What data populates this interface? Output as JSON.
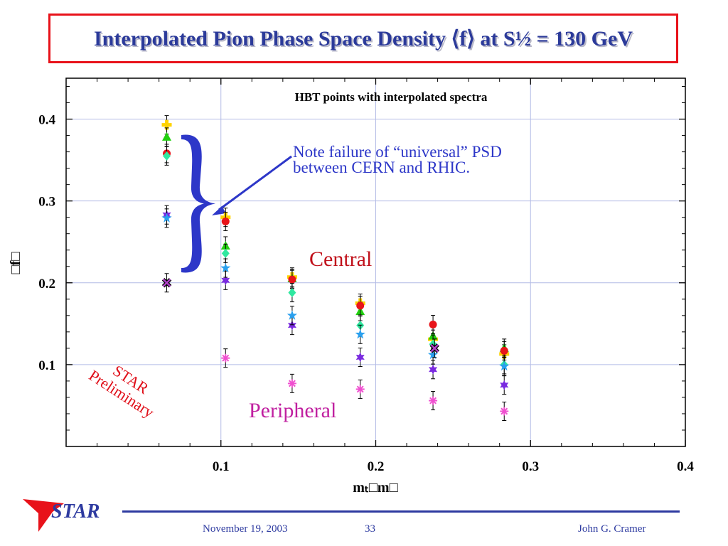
{
  "title": "Interpolated Pion Phase Space Density ⟨f⟩ at S½ = 130 GeV",
  "footer": {
    "logo": "STAR",
    "date": "November 19, 2003",
    "page": "33",
    "author": "John G. Cramer"
  },
  "colors": {
    "frame": "#e8121a",
    "title": "#2b3a9a",
    "brace": "#2d37c8",
    "note": "#2d37c8",
    "central": "#c0101a",
    "peripheral": "#c020a0",
    "preliminary": "#e0101a"
  },
  "chart_data": {
    "type": "scatter",
    "title": "HBT points with interpolated spectra",
    "xlabel": "mₜ□m□",
    "ylabel": "□f□",
    "xlim": [
      0.0,
      0.4
    ],
    "ylim": [
      0.0,
      0.45
    ],
    "x_ticks": [
      "0.1",
      "0.2",
      "0.3",
      "0.4"
    ],
    "y_ticks": [
      "0.1",
      "0.2",
      "0.3",
      "0.4"
    ],
    "grid": true,
    "annotations": {
      "note": [
        "Note failure of “universal” PSD",
        "between CERN and RHIC."
      ],
      "central": "Central",
      "peripheral": "Peripheral",
      "preliminary": [
        "STAR",
        "Preliminary"
      ]
    },
    "series": [
      {
        "color": "#ffd200",
        "marker": "cross",
        "x": [
          0.065,
          0.103,
          0.146,
          0.19,
          0.237,
          0.283
        ],
        "y": [
          0.393,
          0.28,
          0.207,
          0.175,
          0.131,
          0.113
        ]
      },
      {
        "color": "#22d010",
        "marker": "triangle",
        "x": [
          0.065,
          0.103,
          0.146,
          0.19,
          0.237,
          0.283
        ],
        "y": [
          0.378,
          0.245,
          0.205,
          0.165,
          0.135,
          0.12
        ]
      },
      {
        "color": "#e8141a",
        "marker": "circle",
        "x": [
          0.065,
          0.103,
          0.146,
          0.19,
          0.237,
          0.283
        ],
        "y": [
          0.358,
          0.275,
          0.204,
          0.172,
          0.149,
          0.117
        ]
      },
      {
        "color": "#30e8a0",
        "marker": "diamond",
        "x": [
          0.065,
          0.103,
          0.146,
          0.19,
          0.237,
          0.283
        ],
        "y": [
          0.355,
          0.236,
          0.188,
          0.148,
          0.125,
          0.1
        ]
      },
      {
        "color": "#7a2ae0",
        "marker": "star6",
        "x": [
          0.065,
          0.103,
          0.146,
          0.19,
          0.237,
          0.283
        ],
        "y": [
          0.283,
          0.203,
          0.148,
          0.109,
          0.094,
          0.075
        ]
      },
      {
        "color": "#2aa0ee",
        "marker": "star5",
        "x": [
          0.065,
          0.103,
          0.146,
          0.19,
          0.237,
          0.283
        ],
        "y": [
          0.279,
          0.218,
          0.16,
          0.137,
          0.112,
          0.098
        ]
      },
      {
        "color": "#b040c8",
        "marker": "xbox",
        "x": [
          0.065,
          0.238
        ],
        "y": [
          0.2,
          0.12
        ]
      },
      {
        "color": "#f050d0",
        "marker": "asterisk",
        "x": [
          0.103,
          0.146,
          0.19,
          0.237,
          0.283
        ],
        "y": [
          0.108,
          0.077,
          0.07,
          0.056,
          0.043
        ]
      }
    ]
  }
}
